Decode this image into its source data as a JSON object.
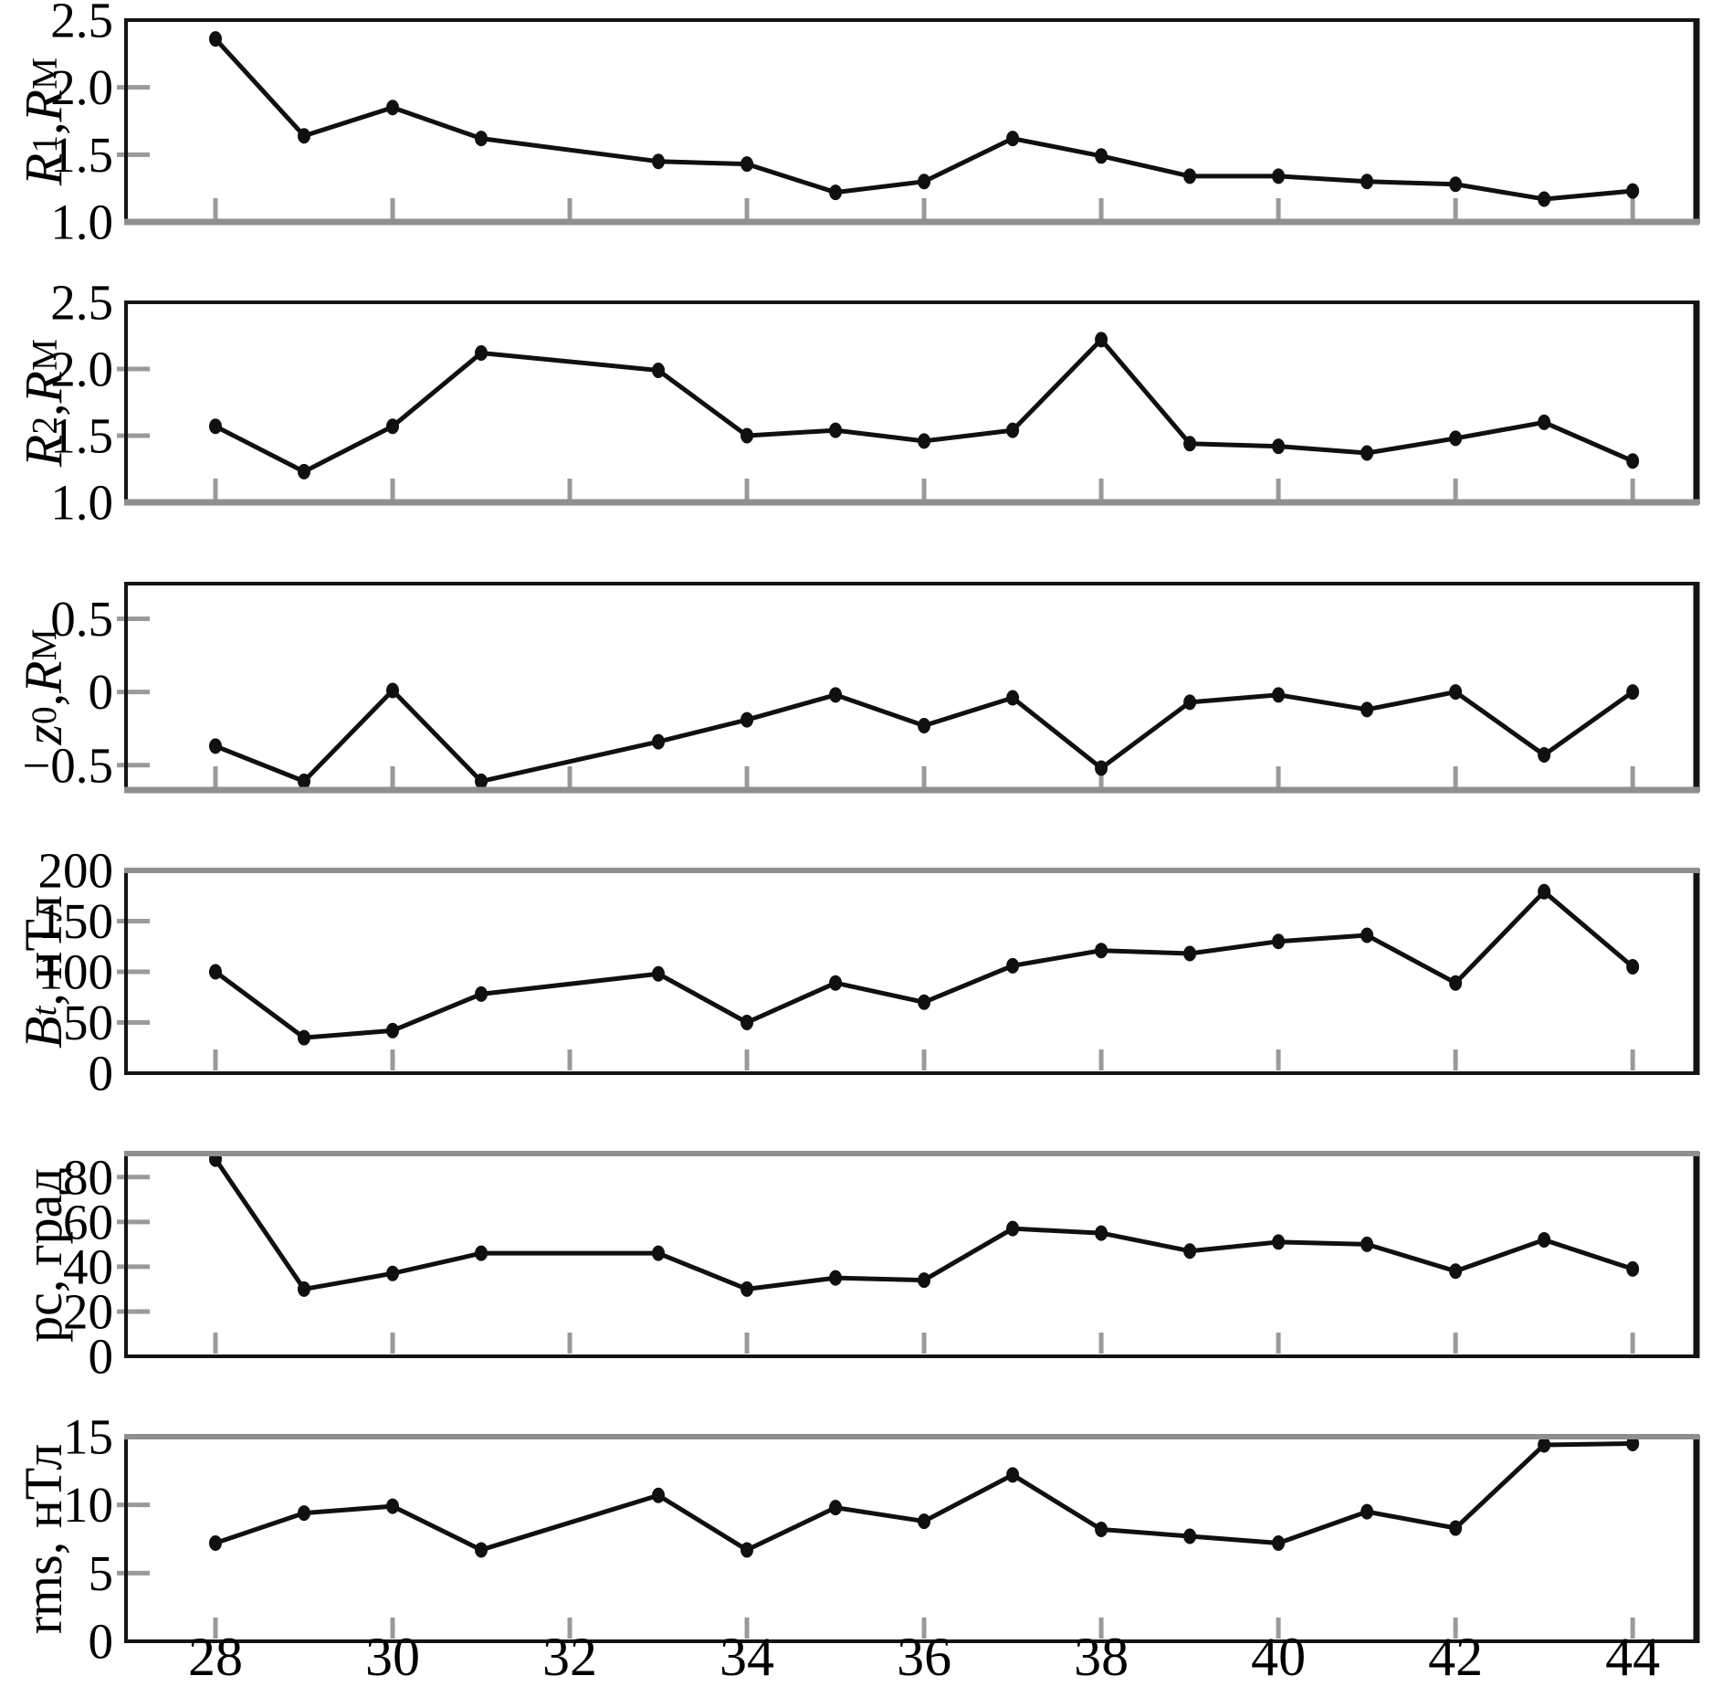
{
  "figure": {
    "background": "#ffffff",
    "colors": {
      "line": "#101010",
      "frame": "#141414",
      "tick": "#9a9a9a",
      "axis_gray": "#8f8f8f",
      "text": "#000000"
    },
    "x_axis": {
      "range": [
        26.99,
        44.72
      ],
      "ticks": [
        28,
        30,
        32,
        34,
        36,
        38,
        40,
        42,
        44
      ],
      "tick_labels": [
        "28",
        "30",
        "32",
        "34",
        "36",
        "38",
        "40",
        "42",
        "44"
      ]
    }
  },
  "chart_data": [
    {
      "type": "line",
      "title": "",
      "ylabel_text": "R1, RM",
      "ylabel_segments": [
        {
          "t": "R",
          "italic": true
        },
        {
          "t": "1",
          "sub": true
        },
        {
          "t": ", "
        },
        {
          "t": "R",
          "italic": true
        },
        {
          "t": "M",
          "sub": true
        }
      ],
      "ylim": [
        1.0,
        2.5
      ],
      "yticks": [
        2.5,
        2.0,
        1.5,
        1.0
      ],
      "ytick_labels": [
        "2.5",
        "2.0",
        "1.5",
        "1.0"
      ],
      "x": [
        28,
        29,
        30,
        31,
        33,
        34,
        35,
        36,
        37,
        38,
        39,
        40,
        41,
        42,
        43,
        44
      ],
      "y": [
        2.36,
        1.64,
        1.85,
        1.62,
        1.45,
        1.43,
        1.22,
        1.3,
        1.62,
        1.49,
        1.34,
        1.34,
        1.3,
        1.28,
        1.17,
        1.23
      ],
      "bottom_axis_gray": true,
      "top_axis_gray": false
    },
    {
      "type": "line",
      "title": "",
      "ylabel_text": "R2, RM",
      "ylabel_segments": [
        {
          "t": "R",
          "italic": true
        },
        {
          "t": "2",
          "sub": true
        },
        {
          "t": ", "
        },
        {
          "t": "R",
          "italic": true
        },
        {
          "t": "M",
          "sub": true
        }
      ],
      "ylim": [
        1.0,
        2.5
      ],
      "yticks": [
        2.5,
        2.0,
        1.5,
        1.0
      ],
      "ytick_labels": [
        "2.5",
        "2.0",
        "1.5",
        "1.0"
      ],
      "x": [
        28,
        29,
        30,
        31,
        33,
        34,
        35,
        36,
        37,
        38,
        39,
        40,
        41,
        42,
        43,
        44
      ],
      "y": [
        1.57,
        1.23,
        1.57,
        2.12,
        1.99,
        1.5,
        1.54,
        1.46,
        1.54,
        2.22,
        1.44,
        1.42,
        1.37,
        1.48,
        1.6,
        1.31
      ],
      "bottom_axis_gray": true,
      "top_axis_gray": false
    },
    {
      "type": "line",
      "title": "",
      "ylabel_text": "z0, RM",
      "ylabel_segments": [
        {
          "t": "z",
          "italic": true
        },
        {
          "t": "0",
          "sub": true
        },
        {
          "t": ", "
        },
        {
          "t": "R",
          "italic": true
        },
        {
          "t": "M",
          "sub": true
        }
      ],
      "ylim": [
        -0.67,
        0.74
      ],
      "yticks": [
        0.5,
        0,
        -0.5
      ],
      "ytick_labels": [
        "0.5",
        "0",
        "−0.5"
      ],
      "x": [
        28,
        29,
        30,
        31,
        33,
        34,
        35,
        36,
        37,
        38,
        39,
        40,
        41,
        42,
        43,
        44
      ],
      "y": [
        -0.37,
        -0.61,
        0.01,
        -0.61,
        -0.34,
        -0.19,
        -0.02,
        -0.23,
        -0.04,
        -0.52,
        -0.07,
        -0.02,
        -0.12,
        0.0,
        -0.43,
        0.0
      ],
      "bottom_axis_gray": true,
      "top_axis_gray": false
    },
    {
      "type": "line",
      "title": "",
      "ylabel_text": "Bt, nTl",
      "ylabel_segments": [
        {
          "t": "B",
          "italic": true
        },
        {
          "t": "t",
          "sub": true,
          "italic": true
        },
        {
          "t": ", нТл"
        }
      ],
      "ylim": [
        0,
        200
      ],
      "yticks": [
        200,
        150,
        100,
        50,
        0
      ],
      "ytick_labels": [
        "200",
        "150",
        "100",
        "50",
        "0"
      ],
      "x": [
        28,
        29,
        30,
        31,
        33,
        34,
        35,
        36,
        37,
        38,
        39,
        40,
        41,
        42,
        43,
        44
      ],
      "y": [
        100,
        35,
        42,
        78,
        98,
        50,
        89,
        70,
        106,
        121,
        118,
        130,
        136,
        89,
        179,
        105
      ],
      "bottom_axis_gray": false,
      "top_axis_gray": true
    },
    {
      "type": "line",
      "title": "",
      "ylabel_text": "pc, grad",
      "ylabel_segments": [
        {
          "t": "pc, град"
        }
      ],
      "ylim": [
        0,
        90.5
      ],
      "yticks": [
        80,
        60,
        40,
        20,
        0
      ],
      "ytick_labels": [
        "80",
        "60",
        "40",
        "20",
        "0"
      ],
      "x": [
        28,
        29,
        30,
        31,
        33,
        34,
        35,
        36,
        37,
        38,
        39,
        40,
        41,
        42,
        43,
        44
      ],
      "y": [
        88,
        30,
        37,
        46,
        46,
        30,
        35,
        34,
        57,
        55,
        47,
        51,
        50,
        38,
        52,
        39
      ],
      "bottom_axis_gray": false,
      "top_axis_gray": true
    },
    {
      "type": "line",
      "title": "",
      "ylabel_text": "rms, nTl",
      "ylabel_segments": [
        {
          "t": "rms, нТл"
        }
      ],
      "ylim": [
        0,
        15
      ],
      "yticks": [
        15,
        10,
        5,
        0
      ],
      "ytick_labels": [
        "15",
        "10",
        "5",
        "0"
      ],
      "x": [
        28,
        29,
        30,
        31,
        33,
        34,
        35,
        36,
        37,
        38,
        39,
        40,
        41,
        42,
        43,
        44
      ],
      "y": [
        7.2,
        9.4,
        9.9,
        6.7,
        10.7,
        6.7,
        9.8,
        8.8,
        12.2,
        8.2,
        7.7,
        7.2,
        9.5,
        8.3,
        14.4,
        14.5
      ],
      "bottom_axis_gray": false,
      "top_axis_gray": true,
      "show_x_labels": true
    }
  ]
}
